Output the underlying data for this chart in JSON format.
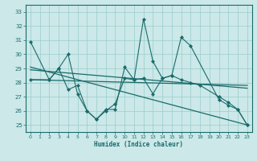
{
  "xlabel": "Humidex (Indice chaleur)",
  "bg_color": "#cce8e8",
  "grid_color": "#99cccc",
  "line_color": "#1a6b6b",
  "xlim": [
    -0.5,
    23.5
  ],
  "ylim": [
    24.5,
    33.5
  ],
  "xticks": [
    0,
    1,
    2,
    3,
    4,
    5,
    6,
    7,
    8,
    9,
    10,
    11,
    12,
    13,
    14,
    15,
    16,
    17,
    18,
    19,
    20,
    21,
    22,
    23
  ],
  "yticks": [
    25,
    26,
    27,
    28,
    29,
    30,
    31,
    32,
    33
  ],
  "series1": {
    "x": [
      0,
      2,
      3,
      4,
      5,
      6,
      7,
      8,
      9,
      10,
      11,
      12,
      13,
      14,
      15,
      16,
      17,
      20,
      21,
      22,
      23
    ],
    "y": [
      30.9,
      28.2,
      29.0,
      30.0,
      27.2,
      26.0,
      25.4,
      26.1,
      26.1,
      29.1,
      28.2,
      32.5,
      29.5,
      28.3,
      28.5,
      31.2,
      30.6,
      26.8,
      26.4,
      26.1,
      25.0
    ]
  },
  "series2": {
    "x": [
      0,
      2,
      3,
      4,
      5,
      6,
      7,
      8,
      9,
      10,
      11,
      12,
      13,
      14,
      15,
      16,
      17,
      18,
      20,
      21,
      22,
      23
    ],
    "y": [
      28.2,
      28.2,
      29.0,
      27.5,
      27.8,
      26.0,
      25.4,
      26.0,
      26.5,
      28.3,
      28.2,
      28.3,
      27.2,
      28.3,
      28.5,
      28.2,
      28.0,
      27.8,
      27.0,
      26.6,
      26.1,
      25.0
    ]
  },
  "trend1": {
    "x": [
      0,
      23
    ],
    "y": [
      28.9,
      27.6
    ]
  },
  "trend2": {
    "x": [
      0,
      23
    ],
    "y": [
      28.2,
      27.8
    ]
  },
  "trend3": {
    "x": [
      0,
      23
    ],
    "y": [
      29.1,
      25.0
    ]
  }
}
